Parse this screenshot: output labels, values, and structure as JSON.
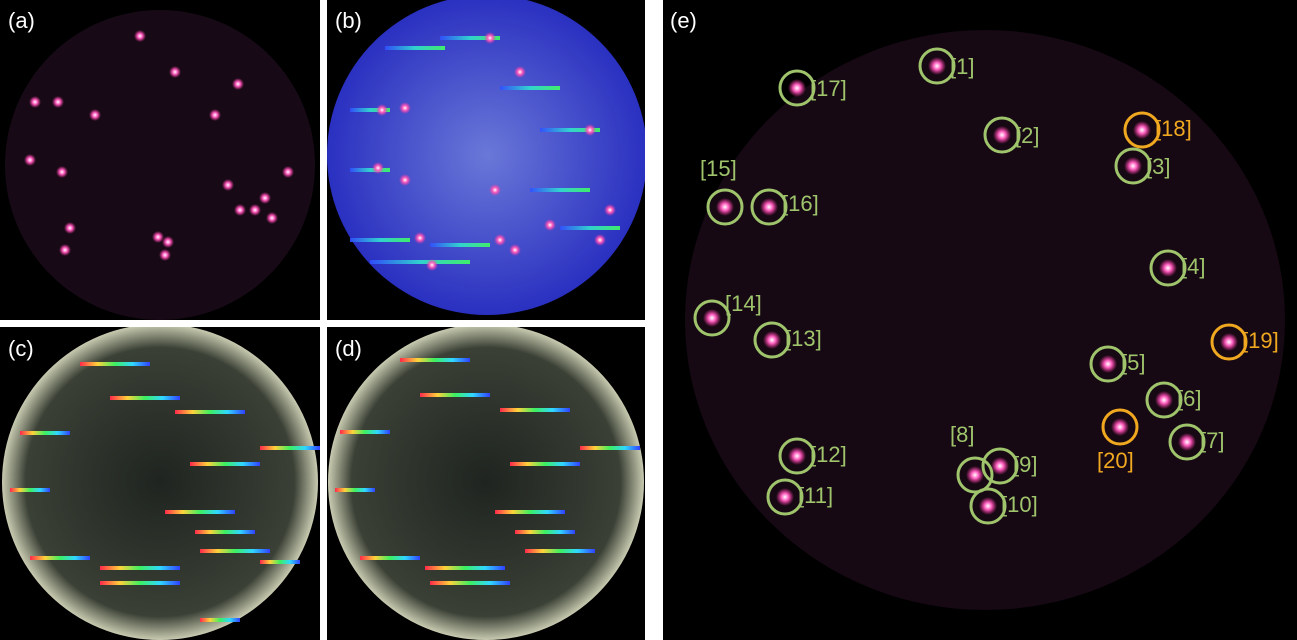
{
  "panels": [
    {
      "label": "(a)"
    },
    {
      "label": "(b)"
    },
    {
      "label": "(c)"
    },
    {
      "label": "(d)"
    },
    {
      "label": "(e)"
    }
  ],
  "annotations": [
    {
      "label": "[1]"
    },
    {
      "label": "[2]"
    },
    {
      "label": "[3]"
    },
    {
      "label": "[4]"
    },
    {
      "label": "[5]"
    },
    {
      "label": "[6]"
    },
    {
      "label": "[7]"
    },
    {
      "label": "[8]"
    },
    {
      "label": "[9]"
    },
    {
      "label": "[10]"
    },
    {
      "label": "[11]"
    },
    {
      "label": "[12]"
    },
    {
      "label": "[13]"
    },
    {
      "label": "[14]"
    },
    {
      "label": "[15]"
    },
    {
      "label": "[16]"
    },
    {
      "label": "[17]"
    },
    {
      "label": "[18]"
    },
    {
      "label": "[19]"
    },
    {
      "label": "[20]"
    }
  ]
}
